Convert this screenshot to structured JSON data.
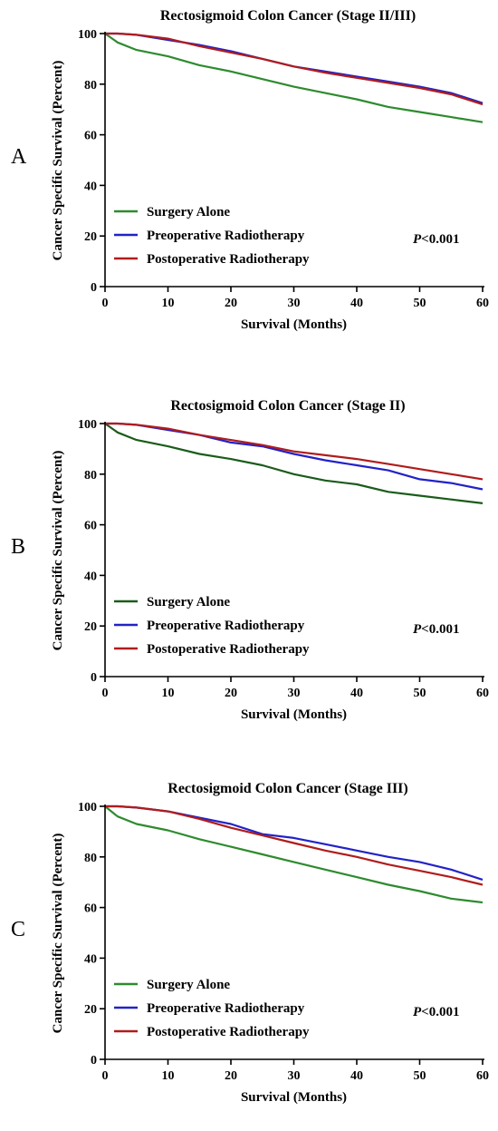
{
  "colors": {
    "surgery_alone": "#2e8b2e",
    "surgery_alone_b": "#1a5c1a",
    "preoperative": "#2222c8",
    "postoperative": "#b01c1c"
  },
  "chart_data": [
    {
      "type": "line",
      "panel_label": "A",
      "title": "Rectosigmoid Colon Cancer (Stage II/III)",
      "xlabel": "Survival (Months)",
      "ylabel": "Cancer Specific Survival (Percent)",
      "xlim": [
        0,
        60
      ],
      "ylim": [
        0,
        100
      ],
      "xticks": [
        0,
        10,
        20,
        30,
        40,
        50,
        60
      ],
      "yticks": [
        0,
        20,
        40,
        60,
        80,
        100
      ],
      "x_tick_labels": [
        "0",
        "10",
        "20",
        "30",
        "40",
        "50",
        "60"
      ],
      "y_tick_labels": [
        "0",
        "20",
        "40",
        "60",
        "80",
        "100"
      ],
      "annotation": {
        "italic": "P",
        "rest": "<0.001"
      },
      "legend": {
        "placement": "bottom-left"
      },
      "series": [
        {
          "name": "Surgery Alone",
          "color": "#2e8b2e",
          "x": [
            0,
            2,
            5,
            10,
            15,
            20,
            25,
            30,
            35,
            40,
            45,
            50,
            55,
            60
          ],
          "y": [
            100,
            96.5,
            93.5,
            91,
            87.5,
            85,
            82,
            79,
            76.5,
            74,
            71,
            69,
            67,
            65
          ]
        },
        {
          "name": "Preoperative Radiotherapy",
          "color": "#2222c8",
          "x": [
            0,
            2,
            5,
            10,
            15,
            20,
            25,
            30,
            35,
            40,
            45,
            50,
            55,
            60
          ],
          "y": [
            100,
            100,
            99.5,
            97.5,
            95.5,
            93,
            90,
            87,
            85,
            83,
            81,
            79,
            76.5,
            72.5
          ]
        },
        {
          "name": "Postoperative Radiotherapy",
          "color": "#b01c1c",
          "x": [
            0,
            2,
            5,
            10,
            15,
            20,
            25,
            30,
            35,
            40,
            45,
            50,
            55,
            60
          ],
          "y": [
            100,
            100,
            99.5,
            98,
            95,
            92.5,
            90,
            87,
            84.5,
            82.5,
            80.5,
            78.5,
            76,
            72
          ]
        }
      ]
    },
    {
      "type": "line",
      "panel_label": "B",
      "title": "Rectosigmoid Colon Cancer (Stage II)",
      "xlabel": "Survival (Months)",
      "ylabel": "Cancer Specific Survival (Percent)",
      "xlim": [
        0,
        60
      ],
      "ylim": [
        0,
        100
      ],
      "xticks": [
        0,
        10,
        20,
        30,
        40,
        50,
        60
      ],
      "yticks": [
        0,
        20,
        40,
        60,
        80,
        100
      ],
      "x_tick_labels": [
        "0",
        "10",
        "20",
        "30",
        "40",
        "50",
        "60"
      ],
      "y_tick_labels": [
        "0",
        "20",
        "40",
        "60",
        "80",
        "100"
      ],
      "annotation": {
        "italic": "P",
        "rest": "<0.001"
      },
      "legend": {
        "placement": "bottom-left"
      },
      "series": [
        {
          "name": "Surgery Alone",
          "color": "#1a5c1a",
          "x": [
            0,
            2,
            5,
            10,
            15,
            20,
            25,
            30,
            35,
            40,
            45,
            50,
            55,
            60
          ],
          "y": [
            100,
            96.5,
            93.5,
            91,
            88,
            86,
            83.5,
            80,
            77.5,
            76,
            73,
            71.5,
            70,
            68.5
          ]
        },
        {
          "name": "Preoperative Radiotherapy",
          "color": "#2222c8",
          "x": [
            0,
            2,
            5,
            10,
            15,
            20,
            25,
            30,
            35,
            40,
            45,
            50,
            55,
            60
          ],
          "y": [
            100,
            100,
            99.5,
            97.5,
            95.5,
            92.5,
            91,
            88,
            85.5,
            83.5,
            81.5,
            78,
            76.5,
            74
          ]
        },
        {
          "name": "Postoperative Radiotherapy",
          "color": "#b01c1c",
          "x": [
            0,
            2,
            5,
            10,
            15,
            20,
            25,
            30,
            35,
            40,
            45,
            50,
            55,
            60
          ],
          "y": [
            100,
            100,
            99.5,
            98,
            95.5,
            93.5,
            91.5,
            89,
            87.5,
            86,
            84,
            82,
            80,
            78
          ]
        }
      ]
    },
    {
      "type": "line",
      "panel_label": "C",
      "title": "Rectosigmoid Colon Cancer (Stage III)",
      "xlabel": "Survival (Months)",
      "ylabel": "Cancer Specific Survival (Percent)",
      "xlim": [
        0,
        60
      ],
      "ylim": [
        0,
        100
      ],
      "xticks": [
        0,
        10,
        20,
        30,
        40,
        50,
        60
      ],
      "yticks": [
        0,
        20,
        40,
        60,
        80,
        100
      ],
      "x_tick_labels": [
        "0",
        "10",
        "20",
        "30",
        "40",
        "50",
        "60"
      ],
      "y_tick_labels": [
        "0",
        "20",
        "40",
        "60",
        "80",
        "100"
      ],
      "annotation": {
        "italic": "P",
        "rest": "<0.001"
      },
      "legend": {
        "placement": "bottom-left"
      },
      "series": [
        {
          "name": "Surgery Alone",
          "color": "#2e8b2e",
          "x": [
            0,
            2,
            5,
            10,
            15,
            20,
            25,
            30,
            35,
            40,
            45,
            50,
            55,
            60
          ],
          "y": [
            100,
            96,
            93,
            90.5,
            87,
            84,
            81,
            78,
            75,
            72,
            69,
            66.5,
            63.5,
            62
          ]
        },
        {
          "name": "Preoperative Radiotherapy",
          "color": "#2222c8",
          "x": [
            0,
            2,
            5,
            10,
            15,
            20,
            25,
            30,
            35,
            40,
            45,
            50,
            55,
            60
          ],
          "y": [
            100,
            100,
            99.5,
            98,
            95.5,
            93,
            89,
            87.5,
            85,
            82.5,
            80,
            78,
            75,
            71
          ]
        },
        {
          "name": "Postoperative Radiotherapy",
          "color": "#b01c1c",
          "x": [
            0,
            2,
            5,
            10,
            15,
            20,
            25,
            30,
            35,
            40,
            45,
            50,
            55,
            60
          ],
          "y": [
            100,
            100,
            99.5,
            98,
            95,
            91.5,
            88.5,
            85.5,
            82.5,
            80,
            77,
            74.5,
            72,
            69
          ]
        }
      ]
    }
  ]
}
